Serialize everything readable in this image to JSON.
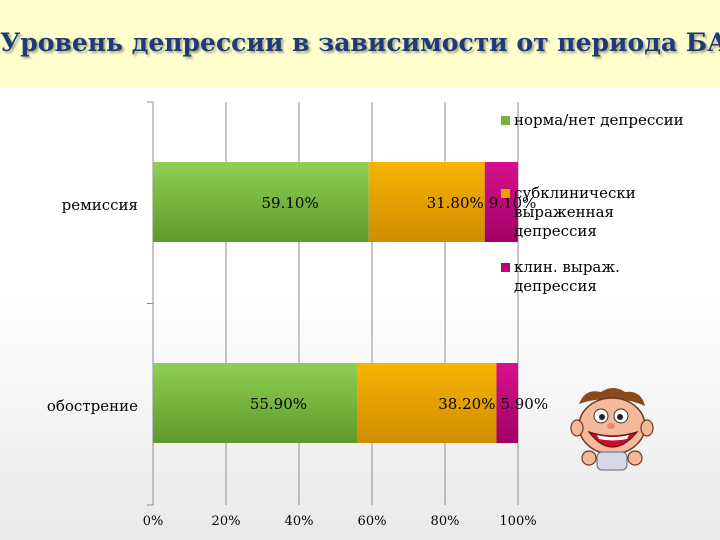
{
  "title": "Уровень депрессии в зависимости от периода БА",
  "colors": {
    "title_background": "#ffffcc",
    "title_text": "#1f3a78"
  },
  "mascot": {
    "icon": "cartoon-boy-icon"
  },
  "chart_data": {
    "type": "bar",
    "orientation": "horizontal",
    "stacked": true,
    "normalized": true,
    "categories": [
      "ремиссия",
      "обострение"
    ],
    "series": [
      {
        "name": "норма/нет депрессии",
        "legend_label": "норма/нет депрессии",
        "values": [
          59.1,
          55.9
        ],
        "labels": [
          "59.10%",
          "55.90%"
        ],
        "color": "#77b33e"
      },
      {
        "name": "субклинически выраженная депрессия",
        "legend_label": "субклинически выраженная депрессия",
        "values": [
          31.8,
          38.2
        ],
        "labels": [
          "31.80%",
          "38.20%"
        ],
        "color": "#e8a100"
      },
      {
        "name": "клин. выраж. депрессия",
        "legend_label": "клин. выраж. депрессия",
        "values": [
          9.1,
          5.9
        ],
        "labels": [
          "9.10%",
          "5.90%"
        ],
        "color": "#c0007a"
      }
    ],
    "xticks": [
      "0%",
      "20%",
      "40%",
      "60%",
      "80%",
      "100%"
    ],
    "xlim": [
      0,
      100
    ],
    "grid": true,
    "legend_position": "right"
  }
}
